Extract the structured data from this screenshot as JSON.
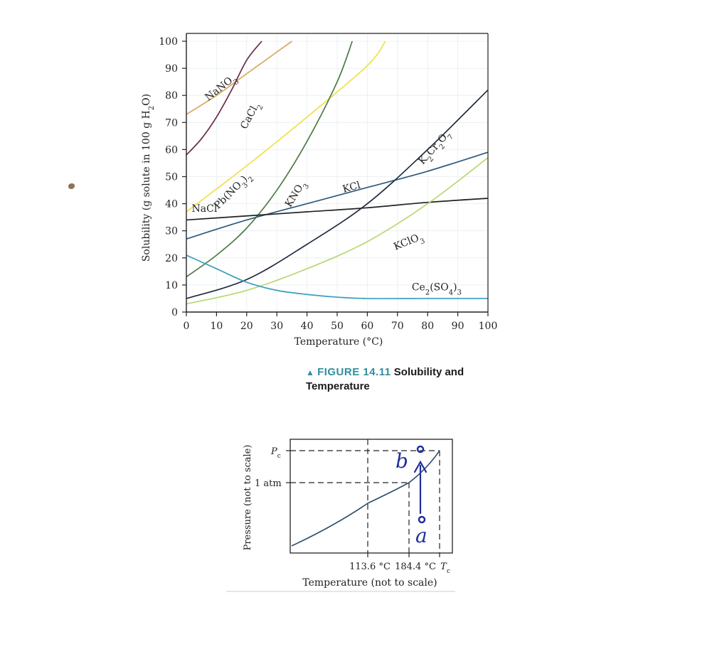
{
  "chart_data": [
    {
      "type": "line",
      "xlabel": "Temperature (°C)",
      "ylabel": "Solubility (g solute in 100 g H₂O)",
      "xlim": [
        0,
        100
      ],
      "ylim": [
        0,
        100
      ],
      "x_ticks": [
        "0",
        "10",
        "20",
        "30",
        "40",
        "50",
        "60",
        "70",
        "80",
        "90",
        "100"
      ],
      "y_ticks": [
        "0",
        "10",
        "20",
        "30",
        "40",
        "50",
        "60",
        "70",
        "80",
        "90",
        "100"
      ],
      "grid": true,
      "series": [
        {
          "name": "NaNO3",
          "label_html": "NaNO<tspan baseline-shift='sub' font-size='10'>3</tspan>",
          "color": "#d9a860",
          "points": [
            [
              0,
              73
            ],
            [
              10,
              80
            ],
            [
              20,
              88
            ],
            [
              30,
              96
            ],
            [
              35,
              100
            ]
          ]
        },
        {
          "name": "CaCl2",
          "label_html": "CaCl<tspan baseline-shift='sub' font-size='10'>2</tspan>",
          "color": "#6b2a4a",
          "points": [
            [
              0,
              58
            ],
            [
              5,
              64
            ],
            [
              10,
              72
            ],
            [
              15,
              82
            ],
            [
              20,
              93
            ],
            [
              25,
              100
            ]
          ]
        },
        {
          "name": "Pb(NO3)2",
          "label_html": "Pb(NO<tspan baseline-shift='sub' font-size='10'>3</tspan>)<tspan baseline-shift='sub' font-size='10'>2</tspan>",
          "color": "#f0e04a",
          "points": [
            [
              0,
              37
            ],
            [
              20,
              54
            ],
            [
              40,
              72
            ],
            [
              60,
              91
            ],
            [
              66,
              100
            ]
          ]
        },
        {
          "name": "KNO3",
          "label_html": "KNO<tspan baseline-shift='sub' font-size='10'>3</tspan>",
          "color": "#4f7a45",
          "points": [
            [
              0,
              13
            ],
            [
              10,
              21
            ],
            [
              20,
              31
            ],
            [
              30,
              45
            ],
            [
              40,
              63
            ],
            [
              50,
              85
            ],
            [
              55,
              100
            ]
          ]
        },
        {
          "name": "KCl",
          "label_html": "KCl",
          "color": "#2d5a7b",
          "points": [
            [
              0,
              27
            ],
            [
              20,
              34
            ],
            [
              40,
              40
            ],
            [
              60,
              46
            ],
            [
              80,
              52
            ],
            [
              100,
              59
            ]
          ]
        },
        {
          "name": "NaCl",
          "label_html": "NaCl",
          "color": "#222222",
          "points": [
            [
              0,
              34
            ],
            [
              20,
              35.5
            ],
            [
              40,
              37
            ],
            [
              60,
              38.5
            ],
            [
              80,
              40.5
            ],
            [
              100,
              42
            ]
          ]
        },
        {
          "name": "K2Cr2O7",
          "label_html": "K<tspan baseline-shift='sub' font-size='10'>2</tspan>Cr<tspan baseline-shift='sub' font-size='10'>2</tspan>O<tspan baseline-shift='sub' font-size='10'>7</tspan>",
          "color": "#202a40",
          "points": [
            [
              0,
              5
            ],
            [
              20,
              12
            ],
            [
              40,
              25
            ],
            [
              60,
              40
            ],
            [
              80,
              60
            ],
            [
              100,
              82
            ]
          ]
        },
        {
          "name": "KClO3",
          "label_html": "KClO<tspan baseline-shift='sub' font-size='10'>3</tspan>",
          "color": "#b8d870",
          "points": [
            [
              0,
              3
            ],
            [
              20,
              8
            ],
            [
              40,
              16
            ],
            [
              60,
              26
            ],
            [
              80,
              40
            ],
            [
              100,
              57
            ]
          ]
        },
        {
          "name": "Ce2(SO4)3",
          "label_html": "Ce<tspan baseline-shift='sub' font-size='10'>2</tspan>(SO<tspan baseline-shift='sub' font-size='10'>4</tspan>)<tspan baseline-shift='sub' font-size='10'>3</tspan>",
          "color": "#3a9ec0",
          "points": [
            [
              0,
              21
            ],
            [
              10,
              16
            ],
            [
              20,
              11
            ],
            [
              30,
              8
            ],
            [
              40,
              6.5
            ],
            [
              50,
              5.5
            ],
            [
              60,
              5
            ],
            [
              80,
              5
            ],
            [
              100,
              5
            ]
          ]
        }
      ]
    },
    {
      "type": "line",
      "xlabel": "Temperature (not to scale)",
      "ylabel": "Pressure (not to scale)",
      "x_ticks": [
        "113.6 °C",
        "184.4 °C",
        "Tc"
      ],
      "y_ticks": [
        "1 atm",
        "Pc"
      ],
      "grid": false,
      "series": [
        {
          "name": "",
          "color": "#2b4d6a"
        }
      ],
      "annotations": [
        "b",
        "a"
      ]
    }
  ],
  "figure": {
    "number": "FIGURE 14.11",
    "title": "Solubility and Temperature"
  },
  "phase_diagram": {
    "tc_label": "T",
    "tc_sub": "c",
    "pc_label": "P",
    "pc_sub": "c",
    "label_1atm": "1 atm",
    "label_t1": "113.6 °C",
    "label_t2": "184.4 °C",
    "annotation_b": "b",
    "annotation_a": "a"
  }
}
